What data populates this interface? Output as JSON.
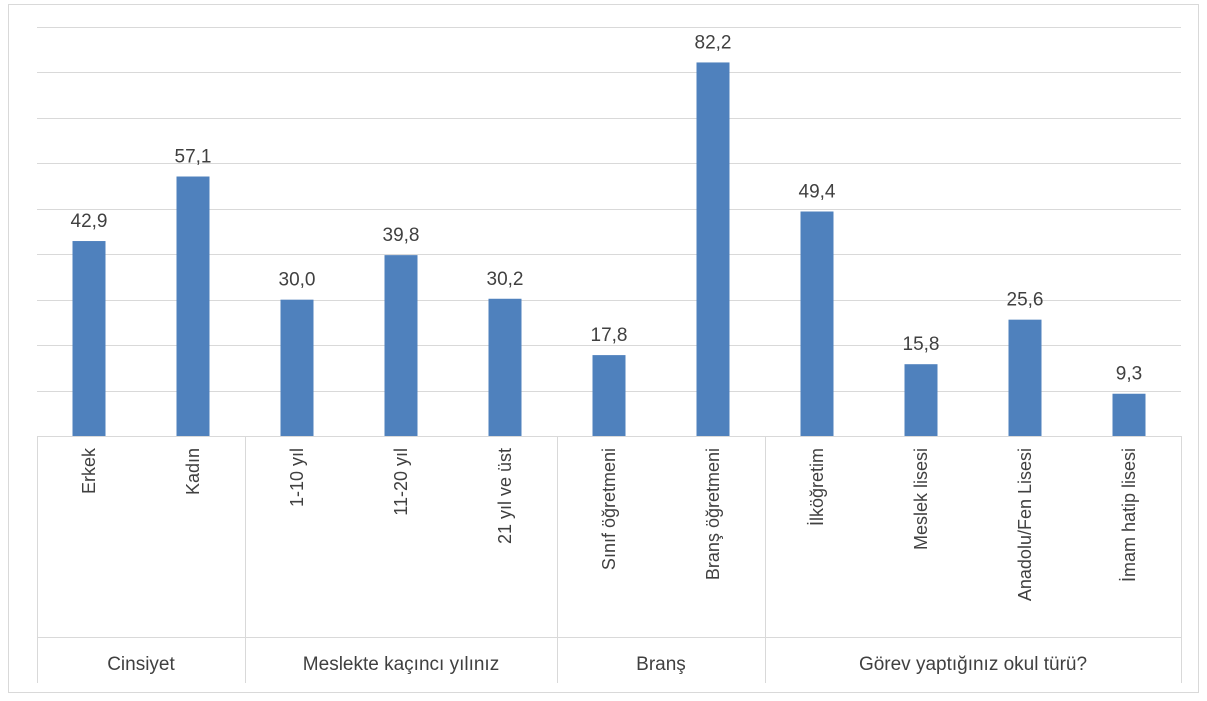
{
  "chart_data": {
    "type": "bar",
    "title": "",
    "ylim": [
      0,
      90
    ],
    "y_gridline_step": 10,
    "y_tick_labels_visible": false,
    "grid": true,
    "legend": "none",
    "bar_color": "#4f81bd",
    "gridline_color": "#d9d9d9",
    "categories": [
      "Erkek",
      "Kadın",
      "1-10 yıl",
      "11-20 yıl",
      "21 yıl ve üst",
      "Sınıf öğretmeni",
      "Branş öğretmeni",
      "İlköğretim",
      "Meslek lisesi",
      "Anadolu/Fen Lisesi",
      "İmam hatip lisesi"
    ],
    "values": [
      42.9,
      57.1,
      30.0,
      39.8,
      30.2,
      17.8,
      82.2,
      49.4,
      15.8,
      25.6,
      9.3
    ],
    "value_labels": [
      "42,9",
      "57,1",
      "30,0",
      "39,8",
      "30,2",
      "17,8",
      "82,2",
      "49,4",
      "15,8",
      "25,6",
      "9,3"
    ],
    "groups": [
      {
        "label": "Cinsiyet",
        "count": 2
      },
      {
        "label": "Meslekte kaçıncı yılınız",
        "count": 3
      },
      {
        "label": "Branş",
        "count": 2
      },
      {
        "label": "Görev yaptığınız okul türü?",
        "count": 4
      }
    ]
  }
}
